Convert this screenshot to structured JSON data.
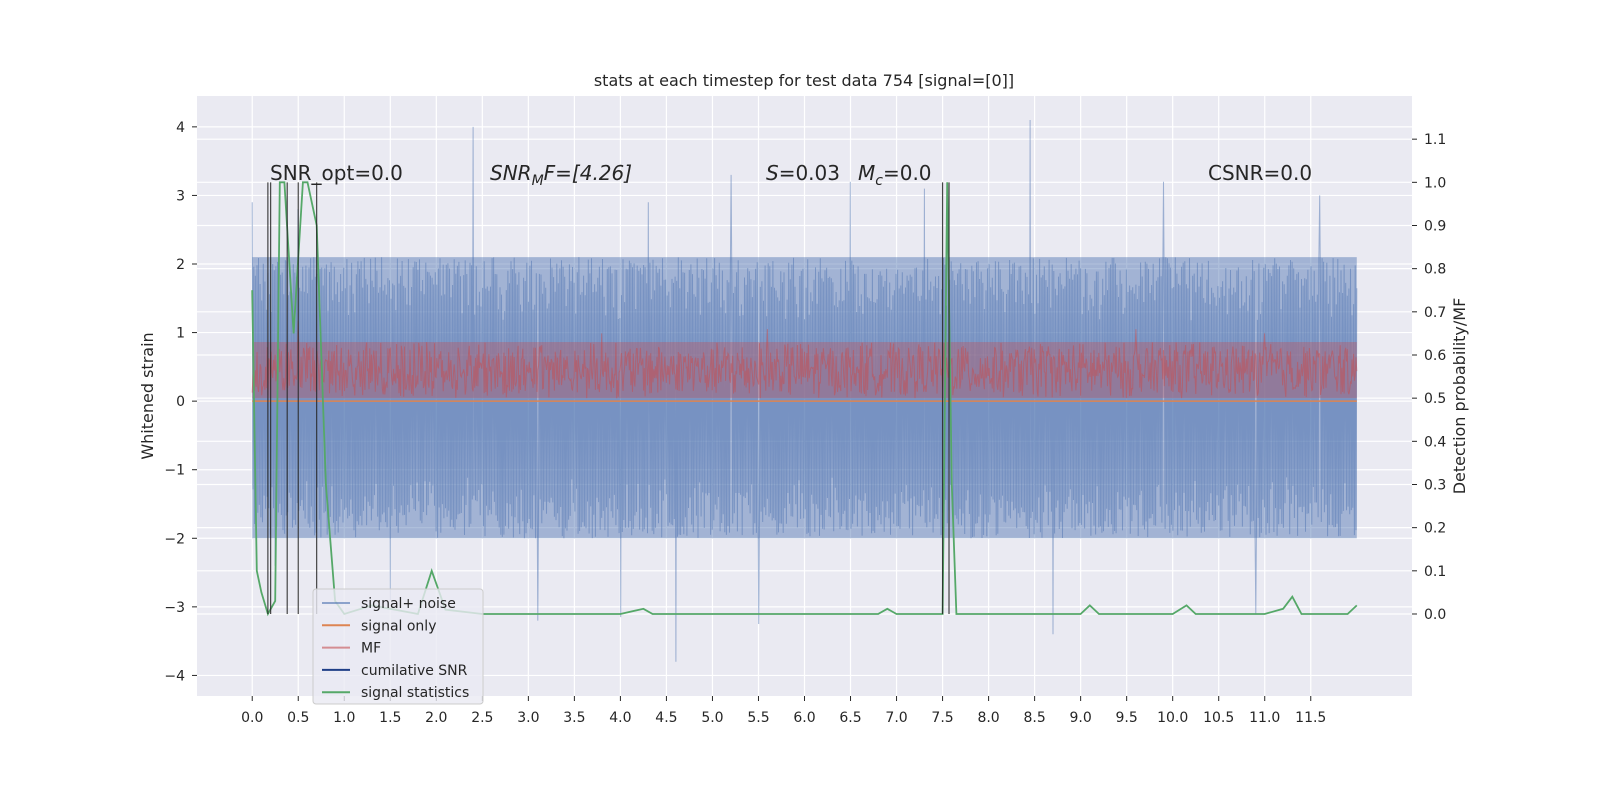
{
  "chart_data": {
    "type": "line",
    "title": "stats at each timestep for test data 754 [signal=[0]]",
    "ylabel": "Whitened strain",
    "y2label": "Detection probability/MF",
    "xlim": [
      -0.6,
      12.6
    ],
    "ylim": [
      -4.3,
      4.45
    ],
    "y2lim": [
      -0.19,
      1.2
    ],
    "x_ticks": [
      0.0,
      0.5,
      1.0,
      1.5,
      2.0,
      2.5,
      3.0,
      3.5,
      4.0,
      4.5,
      5.0,
      5.5,
      6.0,
      6.5,
      7.0,
      7.5,
      8.0,
      8.5,
      9.0,
      9.5,
      10.0,
      10.5,
      11.0,
      11.5
    ],
    "x_tick_labels": [
      "0.0",
      "0.5",
      "1.0",
      "1.5",
      "2.0",
      "2.5",
      "3.0",
      "3.5",
      "4.0",
      "4.5",
      "5.0",
      "5.5",
      "6.0",
      "6.5",
      "7.0",
      "7.5",
      "8.0",
      "8.5",
      "9.0",
      "9.5",
      "10.0",
      "10.5",
      "11.0",
      "11.5"
    ],
    "y_ticks": [
      4,
      3,
      2,
      1,
      0,
      -1,
      -2,
      -3,
      -4
    ],
    "y_tick_labels": [
      "4",
      "3",
      "2",
      "1",
      "0",
      "−1",
      "−2",
      "−3",
      "−4"
    ],
    "y2_ticks": [
      1.1,
      1.0,
      0.9,
      0.8,
      0.7,
      0.6,
      0.5,
      0.4,
      0.3,
      0.2,
      0.1,
      0.0
    ],
    "y2_tick_labels": [
      "1.1",
      "1.0",
      "0.9",
      "0.8",
      "0.7",
      "0.6",
      "0.5",
      "0.4",
      "0.3",
      "0.2",
      "0.1",
      "0.0"
    ],
    "grid": true,
    "legend_position": "bottom-left",
    "annotations": {
      "snr_opt": "SNR_opt=0.0",
      "snr_mf_pre": "SNR",
      "snr_mf_sub": "M",
      "snr_mf_post": "F=[4.26]",
      "s_pre": "S",
      "s_val": "=0.03",
      "mc_pre": "M",
      "mc_sub": "c",
      "mc_val": "=0.0",
      "csnr": "CSNR=0.0"
    },
    "series": [
      {
        "name": "signal+ noise",
        "color": "#4c72b0",
        "axis": "left",
        "duration": 12.0,
        "band_low": -2.0,
        "band_high": 2.1,
        "spikes": [
          [
            0.0,
            2.9
          ],
          [
            0.25,
            -2.4
          ],
          [
            0.5,
            2.8
          ],
          [
            1.5,
            -2.9
          ],
          [
            2.4,
            4.0
          ],
          [
            3.1,
            -3.2
          ],
          [
            4.0,
            -3.15
          ],
          [
            4.3,
            2.9
          ],
          [
            4.6,
            -3.8
          ],
          [
            5.2,
            3.3
          ],
          [
            5.5,
            -3.25
          ],
          [
            6.5,
            3.2
          ],
          [
            7.3,
            3.1
          ],
          [
            8.45,
            4.1
          ],
          [
            8.7,
            -3.4
          ],
          [
            9.9,
            3.2
          ],
          [
            10.9,
            -3.1
          ],
          [
            11.6,
            3.0
          ]
        ]
      },
      {
        "name": "signal only",
        "color": "#dd8452",
        "axis": "left",
        "x": [
          0.0,
          12.0
        ],
        "y": [
          0.0,
          0.0
        ]
      },
      {
        "name": "MF",
        "color": "#c44e52",
        "axis": "right",
        "duration": 12.0,
        "band_low": 0.5,
        "band_high": 0.63,
        "spikes": [
          [
            0.5,
            0.68
          ],
          [
            3.8,
            0.65
          ],
          [
            5.6,
            0.66
          ],
          [
            9.6,
            0.66
          ],
          [
            11.0,
            0.65
          ]
        ]
      },
      {
        "name": "cumilative SNR",
        "color": "#1f3f87",
        "axis": "right",
        "x": [],
        "y": []
      },
      {
        "name": "signal statistics",
        "color": "#55a868",
        "axis": "right",
        "x": [
          0.0,
          0.05,
          0.1,
          0.17,
          0.25,
          0.3,
          0.35,
          0.45,
          0.55,
          0.6,
          0.7,
          0.8,
          0.9,
          1.0,
          1.3,
          1.8,
          1.95,
          2.1,
          2.5,
          3.0,
          3.5,
          4.0,
          4.25,
          4.35,
          4.5,
          5.0,
          6.0,
          6.8,
          6.9,
          7.0,
          7.5,
          7.55,
          7.6,
          7.65,
          8.0,
          8.5,
          9.0,
          9.1,
          9.2,
          9.5,
          10.0,
          10.15,
          10.25,
          10.5,
          11.0,
          11.2,
          11.3,
          11.4,
          11.9,
          12.0
        ],
        "y": [
          0.75,
          0.1,
          0.05,
          0.0,
          0.03,
          1.0,
          1.0,
          0.65,
          1.0,
          1.0,
          0.9,
          0.3,
          0.03,
          0.0,
          0.02,
          0.0,
          0.1,
          0.01,
          0.0,
          0.0,
          0.0,
          0.0,
          0.012,
          0.0,
          0.0,
          0.0,
          0.0,
          0.0,
          0.012,
          0.0,
          0.0,
          1.0,
          0.3,
          0.0,
          0.0,
          0.0,
          0.0,
          0.02,
          0.0,
          0.0,
          0.0,
          0.02,
          0.0,
          0.0,
          0.0,
          0.012,
          0.04,
          0.0,
          0.0,
          0.02
        ]
      },
      {
        "name": "",
        "color": "#262626",
        "axis": "right",
        "kind": "vlines",
        "x": [
          0.17,
          0.2,
          0.38,
          0.5,
          0.7,
          7.5,
          7.57
        ],
        "y_from": 0.0,
        "y_to": 1.0
      }
    ]
  }
}
